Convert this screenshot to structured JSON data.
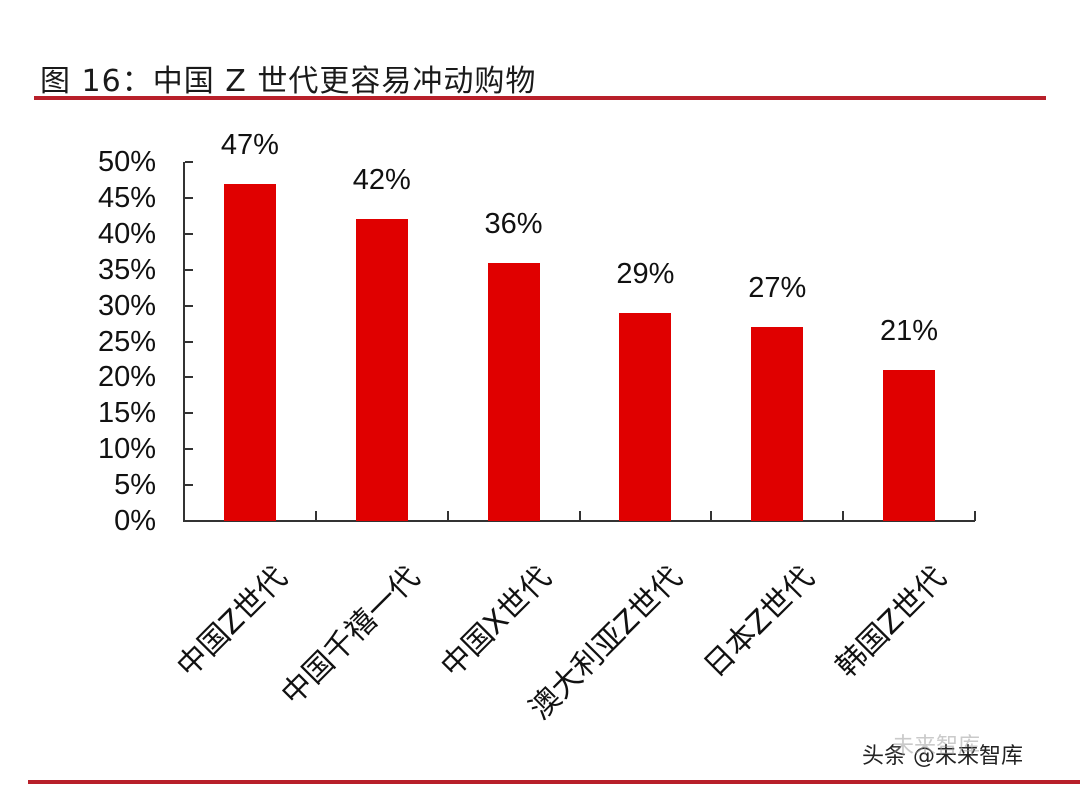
{
  "header": {
    "title": "图 16：中国 Z 世代更容易冲动购物"
  },
  "colors": {
    "bar": "#e00000",
    "rule": "#b8202a",
    "axis": "#333333"
  },
  "watermark": {
    "text": "头条 @未来智库",
    "faint_text": "未来智库"
  },
  "chart_data": {
    "type": "bar",
    "title": "图 16：中国 Z 世代更容易冲动购物",
    "xlabel": "",
    "ylabel": "",
    "categories": [
      "中国Z世代",
      "中国千禧一代",
      "中国X世代",
      "澳大利亚Z世代",
      "日本Z世代",
      "韩国Z世代"
    ],
    "values": [
      47,
      42,
      36,
      29,
      27,
      21
    ],
    "value_labels": [
      "47%",
      "42%",
      "36%",
      "29%",
      "27%",
      "21%"
    ],
    "ylim": [
      0,
      50
    ],
    "yticks": [
      "0%",
      "5%",
      "10%",
      "15%",
      "20%",
      "25%",
      "30%",
      "35%",
      "40%",
      "45%",
      "50%"
    ],
    "grid": false,
    "legend": "none",
    "unit": "%"
  }
}
